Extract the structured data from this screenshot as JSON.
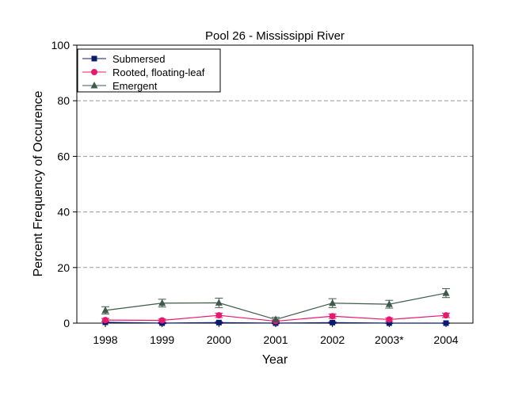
{
  "chart_data": {
    "type": "line",
    "title": "Pool 26 - Mississippi River",
    "xlabel": "Year",
    "ylabel": "Percent Frequency of Occurence",
    "categories": [
      "1998",
      "1999",
      "2000",
      "2001",
      "2002",
      "2003*",
      "2004"
    ],
    "ylim": [
      0,
      100
    ],
    "yticks": [
      0,
      20,
      40,
      60,
      80,
      100
    ],
    "grid": "horizontal dashed",
    "legend_position": "top-left",
    "series": [
      {
        "name": "Submersed",
        "color": "#0a1a6e",
        "marker": "square",
        "values": [
          0.3,
          0.0,
          0.2,
          0.0,
          0.2,
          0.0,
          0.0
        ],
        "errors": [
          0.3,
          0.2,
          0.3,
          0.2,
          0.3,
          0.1,
          0.1
        ]
      },
      {
        "name": "Rooted, floating-leaf",
        "color": "#e8186e",
        "marker": "circle",
        "values": [
          1.1,
          1.0,
          2.8,
          0.7,
          2.5,
          1.3,
          2.8
        ],
        "errors": [
          0.6,
          0.5,
          0.8,
          0.4,
          0.8,
          0.6,
          0.8
        ]
      },
      {
        "name": "Emergent",
        "color": "#3d5a4a",
        "marker": "triangle",
        "values": [
          4.6,
          7.2,
          7.3,
          1.3,
          7.2,
          6.8,
          10.8
        ],
        "errors": [
          1.3,
          1.4,
          1.7,
          0.8,
          1.6,
          1.4,
          1.6
        ]
      }
    ]
  }
}
